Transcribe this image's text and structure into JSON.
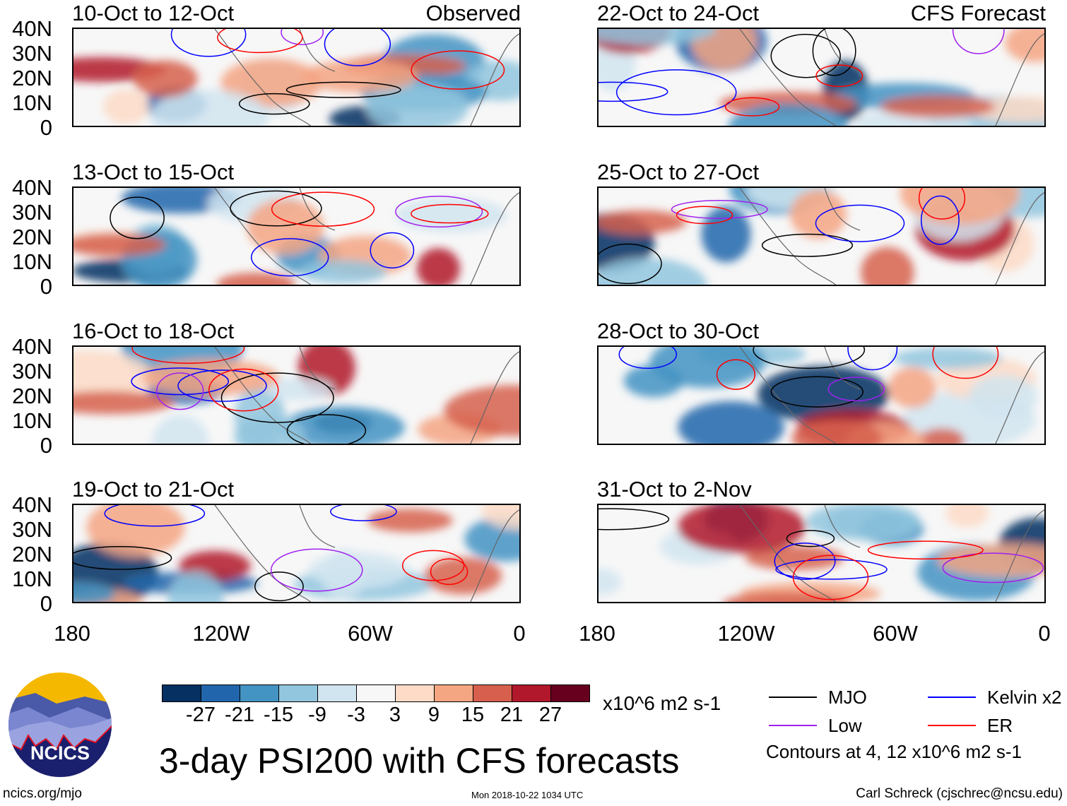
{
  "title": "3-day PSI200 with CFS forecasts",
  "observed_label": "Observed",
  "forecast_label": "CFS Forecast",
  "units": "x10^6 m2 s-1",
  "contours_note": "Contours at 4, 12 x10^6 m2 s-1",
  "site": "ncics.org/mjo",
  "timestamp": "Mon 2018-10-22 1034 UTC",
  "author": "Carl Schreck (cjschrec@ncsu.edu)",
  "logo_text": "NCICS",
  "chart_data": {
    "type": "heatmap",
    "title": "3-day PSI200 with CFS forecasts",
    "panels": [
      {
        "title": "10-Oct to 12-Oct",
        "kind": "Observed"
      },
      {
        "title": "13-Oct to 15-Oct",
        "kind": "Observed"
      },
      {
        "title": "16-Oct to 18-Oct",
        "kind": "Observed"
      },
      {
        "title": "19-Oct to 21-Oct",
        "kind": "Observed"
      },
      {
        "title": "22-Oct to 24-Oct",
        "kind": "CFS Forecast"
      },
      {
        "title": "25-Oct to 27-Oct",
        "kind": "CFS Forecast"
      },
      {
        "title": "28-Oct to 30-Oct",
        "kind": "CFS Forecast"
      },
      {
        "title": "31-Oct to 2-Nov",
        "kind": "CFS Forecast"
      }
    ],
    "y_ticks": [
      "40N",
      "30N",
      "20N",
      "10N",
      "0"
    ],
    "x_ticks": [
      "180",
      "120W",
      "60W",
      "0"
    ],
    "colorbar": {
      "levels": [
        "-27",
        "-21",
        "-15",
        "-9",
        "-3",
        "3",
        "9",
        "15",
        "21",
        "27"
      ],
      "colors": [
        "#053061",
        "#2166ac",
        "#4393c3",
        "#92c5de",
        "#d1e5f0",
        "#f7f7f7",
        "#fddbc7",
        "#f4a582",
        "#d6604d",
        "#b2182b",
        "#67001f"
      ]
    },
    "legend": [
      {
        "label": "MJO",
        "color": "#000000"
      },
      {
        "label": "Kelvin x2",
        "color": "#0000ff"
      },
      {
        "label": "Low",
        "color": "#a020f0"
      },
      {
        "label": "ER",
        "color": "#ff0000"
      }
    ]
  }
}
